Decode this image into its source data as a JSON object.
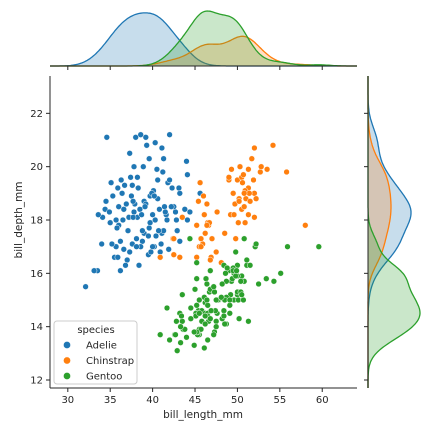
{
  "chart_data": {
    "type": "scatter",
    "title": "",
    "xlabel": "bill_length_mm",
    "ylabel": "bill_depth_mm",
    "xlim": [
      27.9,
      64.1
    ],
    "ylim": [
      11.7,
      23.4
    ],
    "x_ticks": [
      30,
      35,
      40,
      45,
      50,
      55,
      60
    ],
    "y_ticks": [
      12,
      14,
      16,
      18,
      20,
      22
    ],
    "grid": false,
    "legend": {
      "title": "species",
      "placement": "lower-left"
    },
    "marginals": {
      "top": "kde of bill_length_mm by species",
      "right": "kde of bill_depth_mm by species",
      "filled": true
    },
    "series": [
      {
        "name": "Adelie",
        "color": "#1f77b4",
        "points": [
          [
            34.6,
            21.1
          ],
          [
            36.7,
            19.3
          ],
          [
            37.8,
            18.3
          ],
          [
            38.0,
            21.1
          ],
          [
            38.6,
            21.2
          ],
          [
            39.2,
            21.1
          ],
          [
            40.3,
            20.9
          ],
          [
            42.0,
            21.2
          ],
          [
            41.1,
            20.7
          ],
          [
            44.1,
            19.7
          ],
          [
            42.9,
            17.6
          ],
          [
            32.1,
            15.5
          ],
          [
            33.5,
            16.1
          ],
          [
            34.1,
            18.1
          ],
          [
            35.0,
            17.9
          ],
          [
            35.5,
            16.6
          ],
          [
            36.2,
            17.2
          ],
          [
            37.0,
            16.5
          ],
          [
            36.6,
            16.9
          ],
          [
            37.3,
            16.8
          ],
          [
            37.9,
            18.6
          ],
          [
            38.2,
            18.1
          ],
          [
            38.8,
            17.2
          ],
          [
            39.5,
            16.7
          ],
          [
            40.2,
            17.0
          ],
          [
            40.8,
            18.4
          ],
          [
            41.4,
            18.5
          ],
          [
            41.1,
            17.5
          ],
          [
            42.5,
            18.5
          ],
          [
            43.2,
            19.0
          ],
          [
            43.5,
            18.1
          ],
          [
            42.2,
            18.5
          ],
          [
            41.3,
            17.6
          ],
          [
            40.6,
            18.8
          ],
          [
            40.0,
            17.0
          ],
          [
            39.7,
            18.9
          ],
          [
            39.0,
            18.7
          ],
          [
            38.5,
            18.4
          ],
          [
            37.7,
            18.7
          ],
          [
            36.9,
            18.6
          ],
          [
            36.4,
            19.0
          ],
          [
            35.7,
            18.0
          ],
          [
            35.1,
            19.4
          ],
          [
            34.4,
            18.4
          ],
          [
            33.1,
            16.1
          ],
          [
            34.0,
            17.1
          ],
          [
            35.9,
            16.6
          ],
          [
            36.8,
            16.3
          ],
          [
            37.6,
            17.1
          ],
          [
            38.1,
            17.3
          ],
          [
            39.6,
            17.7
          ],
          [
            40.7,
            17.6
          ],
          [
            41.6,
            18.2
          ],
          [
            42.8,
            18.0
          ],
          [
            43.8,
            18.4
          ],
          [
            44.4,
            18.3
          ],
          [
            45.6,
            19.0
          ],
          [
            40.9,
            16.8
          ],
          [
            39.8,
            16.8
          ],
          [
            39.2,
            18.6
          ],
          [
            38.7,
            18.2
          ],
          [
            37.2,
            18.1
          ],
          [
            36.0,
            18.5
          ],
          [
            35.3,
            18.9
          ],
          [
            34.5,
            18.7
          ],
          [
            37.4,
            19.6
          ],
          [
            38.9,
            20.0
          ],
          [
            39.6,
            20.3
          ],
          [
            40.1,
            19.1
          ],
          [
            40.6,
            19.5
          ],
          [
            41.8,
            19.4
          ],
          [
            42.3,
            19.2
          ],
          [
            40.3,
            18.0
          ],
          [
            39.0,
            17.5
          ],
          [
            38.2,
            19.6
          ],
          [
            36.3,
            19.5
          ],
          [
            35.9,
            19.2
          ],
          [
            37.8,
            20.0
          ],
          [
            38.6,
            17.0
          ],
          [
            41.5,
            18.3
          ],
          [
            39.3,
            20.8
          ],
          [
            40.9,
            16.6
          ],
          [
            41.3,
            20.3
          ],
          [
            37.3,
            20.5
          ],
          [
            36.2,
            16.1
          ],
          [
            35.7,
            17.0
          ],
          [
            37.5,
            18.9
          ],
          [
            39.9,
            19.0
          ],
          [
            42.4,
            17.3
          ],
          [
            44.1,
            18.0
          ],
          [
            43.1,
            19.2
          ],
          [
            41.0,
            17.1
          ],
          [
            39.5,
            17.4
          ],
          [
            38.1,
            17.0
          ],
          [
            36.0,
            17.8
          ],
          [
            37.6,
            19.3
          ],
          [
            38.8,
            17.6
          ],
          [
            40.2,
            18.9
          ],
          [
            41.7,
            18.0
          ],
          [
            42.7,
            18.3
          ],
          [
            36.6,
            18.4
          ],
          [
            38.3,
            19.2
          ],
          [
            40.5,
            19.9
          ],
          [
            35.2,
            17.1
          ],
          [
            33.6,
            18.2
          ],
          [
            34.9,
            18.3
          ],
          [
            36.5,
            18.0
          ],
          [
            37.7,
            18.1
          ],
          [
            39.1,
            18.5
          ],
          [
            40.4,
            17.4
          ],
          [
            41.9,
            16.9
          ],
          [
            38.4,
            16.3
          ],
          [
            37.1,
            17.6
          ],
          [
            35.8,
            17.7
          ],
          [
            39.7,
            17.9
          ],
          [
            41.2,
            19.8
          ],
          [
            44.0,
            20.2
          ],
          [
            43.2,
            17.2
          ],
          [
            42.0,
            19.5
          ],
          [
            40.0,
            18.2
          ]
        ]
      },
      {
        "name": "Chinstrap",
        "color": "#ff7f0e",
        "points": [
          [
            46.5,
            17.9
          ],
          [
            50.0,
            19.5
          ],
          [
            51.3,
            19.2
          ],
          [
            45.4,
            18.7
          ],
          [
            52.7,
            19.8
          ],
          [
            45.2,
            17.8
          ],
          [
            46.1,
            18.2
          ],
          [
            51.3,
            18.2
          ],
          [
            46.0,
            18.9
          ],
          [
            51.3,
            19.9
          ],
          [
            46.6,
            17.8
          ],
          [
            51.7,
            20.3
          ],
          [
            47.0,
            17.3
          ],
          [
            52.0,
            18.1
          ],
          [
            45.9,
            17.1
          ],
          [
            50.5,
            19.6
          ],
          [
            50.3,
            20.0
          ],
          [
            58.0,
            17.8
          ],
          [
            46.4,
            18.6
          ],
          [
            49.2,
            18.2
          ],
          [
            42.4,
            17.3
          ],
          [
            48.5,
            17.5
          ],
          [
            43.2,
            16.6
          ],
          [
            50.6,
            19.4
          ],
          [
            46.7,
            17.9
          ],
          [
            52.0,
            19.0
          ],
          [
            50.5,
            18.4
          ],
          [
            49.5,
            19.0
          ],
          [
            46.4,
            17.8
          ],
          [
            52.8,
            20.0
          ],
          [
            40.9,
            16.6
          ],
          [
            54.2,
            20.8
          ],
          [
            42.5,
            16.7
          ],
          [
            51.0,
            18.8
          ],
          [
            49.7,
            18.6
          ],
          [
            47.5,
            16.8
          ],
          [
            47.6,
            18.3
          ],
          [
            52.0,
            20.7
          ],
          [
            46.9,
            16.6
          ],
          [
            53.5,
            19.9
          ],
          [
            49.0,
            19.5
          ],
          [
            46.2,
            17.5
          ],
          [
            50.9,
            19.1
          ],
          [
            45.5,
            17.0
          ],
          [
            50.9,
            17.9
          ],
          [
            50.8,
            18.5
          ],
          [
            50.1,
            17.9
          ],
          [
            49.0,
            19.6
          ],
          [
            51.5,
            18.7
          ],
          [
            49.8,
            17.3
          ],
          [
            48.1,
            16.4
          ],
          [
            51.4,
            19.0
          ],
          [
            45.7,
            17.3
          ],
          [
            50.7,
            19.7
          ],
          [
            42.5,
            17.3
          ],
          [
            52.2,
            18.8
          ],
          [
            45.2,
            16.6
          ],
          [
            49.3,
            19.9
          ],
          [
            50.2,
            18.8
          ],
          [
            45.6,
            19.4
          ],
          [
            51.9,
            19.5
          ],
          [
            46.8,
            16.5
          ],
          [
            45.7,
            17.0
          ],
          [
            55.8,
            19.8
          ],
          [
            43.5,
            18.1
          ],
          [
            49.6,
            18.2
          ],
          [
            50.8,
            19.0
          ],
          [
            50.2,
            18.7
          ]
        ]
      },
      {
        "name": "Gentoo",
        "color": "#2ca02c",
        "points": [
          [
            46.1,
            13.2
          ],
          [
            50.0,
            16.3
          ],
          [
            48.7,
            14.1
          ],
          [
            50.0,
            15.2
          ],
          [
            47.6,
            14.5
          ],
          [
            46.5,
            13.5
          ],
          [
            45.4,
            14.6
          ],
          [
            46.7,
            15.3
          ],
          [
            43.3,
            13.4
          ],
          [
            46.8,
            15.4
          ],
          [
            40.9,
            13.7
          ],
          [
            49.0,
            16.1
          ],
          [
            45.5,
            13.7
          ],
          [
            48.4,
            14.6
          ],
          [
            45.8,
            14.6
          ],
          [
            49.3,
            15.7
          ],
          [
            42.0,
            13.5
          ],
          [
            49.2,
            15.2
          ],
          [
            46.2,
            14.5
          ],
          [
            48.7,
            15.1
          ],
          [
            50.2,
            14.3
          ],
          [
            45.1,
            14.5
          ],
          [
            46.5,
            14.5
          ],
          [
            46.3,
            15.8
          ],
          [
            42.9,
            13.1
          ],
          [
            46.1,
            15.1
          ],
          [
            44.5,
            14.3
          ],
          [
            47.8,
            15.0
          ],
          [
            48.2,
            14.3
          ],
          [
            50.0,
            15.3
          ],
          [
            47.3,
            15.3
          ],
          [
            42.8,
            14.2
          ],
          [
            45.1,
            14.5
          ],
          [
            59.6,
            17.0
          ],
          [
            49.1,
            14.8
          ],
          [
            48.4,
            16.3
          ],
          [
            42.6,
            13.7
          ],
          [
            44.4,
            17.3
          ],
          [
            44.0,
            13.6
          ],
          [
            48.7,
            15.7
          ],
          [
            42.7,
            13.7
          ],
          [
            49.6,
            16.0
          ],
          [
            45.3,
            13.7
          ],
          [
            49.6,
            15.0
          ],
          [
            50.5,
            15.9
          ],
          [
            43.6,
            13.9
          ],
          [
            45.5,
            13.9
          ],
          [
            50.5,
            15.9
          ],
          [
            44.9,
            13.3
          ],
          [
            45.2,
            15.8
          ],
          [
            46.6,
            14.2
          ],
          [
            48.5,
            14.1
          ],
          [
            45.1,
            14.4
          ],
          [
            50.1,
            15.0
          ],
          [
            46.5,
            14.4
          ],
          [
            45.0,
            15.4
          ],
          [
            43.8,
            13.9
          ],
          [
            45.5,
            15.0
          ],
          [
            43.2,
            14.5
          ],
          [
            50.4,
            15.3
          ],
          [
            45.3,
            13.8
          ],
          [
            46.2,
            14.9
          ],
          [
            45.7,
            13.9
          ],
          [
            54.3,
            15.7
          ],
          [
            45.8,
            14.2
          ],
          [
            49.8,
            16.8
          ],
          [
            46.2,
            14.4
          ],
          [
            49.5,
            16.2
          ],
          [
            43.5,
            14.2
          ],
          [
            50.7,
            15.0
          ],
          [
            47.7,
            15.0
          ],
          [
            46.4,
            15.6
          ],
          [
            48.2,
            15.6
          ],
          [
            46.5,
            14.8
          ],
          [
            46.4,
            15.0
          ],
          [
            48.6,
            16.0
          ],
          [
            47.5,
            14.2
          ],
          [
            51.1,
            16.3
          ],
          [
            45.2,
            13.8
          ],
          [
            45.2,
            16.4
          ],
          [
            49.1,
            14.5
          ],
          [
            52.5,
            15.6
          ],
          [
            47.4,
            14.6
          ],
          [
            50.0,
            15.9
          ],
          [
            44.9,
            13.8
          ],
          [
            50.8,
            17.3
          ],
          [
            43.4,
            14.4
          ],
          [
            51.3,
            14.2
          ],
          [
            47.5,
            14.0
          ],
          [
            52.1,
            17.0
          ],
          [
            47.5,
            15.0
          ],
          [
            52.2,
            17.1
          ],
          [
            45.5,
            14.5
          ],
          [
            49.5,
            16.1
          ],
          [
            44.5,
            14.7
          ],
          [
            50.8,
            15.7
          ],
          [
            49.4,
            15.8
          ],
          [
            46.9,
            14.6
          ],
          [
            48.4,
            14.4
          ],
          [
            51.1,
            16.5
          ],
          [
            48.5,
            15.0
          ],
          [
            55.9,
            17.0
          ],
          [
            47.2,
            15.5
          ],
          [
            49.1,
            15.0
          ],
          [
            47.3,
            13.8
          ],
          [
            46.8,
            16.1
          ],
          [
            41.7,
            14.7
          ],
          [
            53.4,
            15.8
          ],
          [
            43.3,
            14.0
          ],
          [
            48.1,
            15.1
          ],
          [
            50.5,
            15.2
          ],
          [
            49.8,
            15.9
          ],
          [
            43.5,
            15.2
          ],
          [
            51.5,
            16.3
          ],
          [
            46.2,
            14.1
          ],
          [
            55.1,
            16.0
          ],
          [
            48.8,
            16.2
          ],
          [
            47.2,
            13.7
          ],
          [
            46.8,
            14.3
          ],
          [
            50.4,
            15.7
          ],
          [
            45.2,
            14.8
          ],
          [
            49.9,
            16.1
          ]
        ]
      }
    ]
  }
}
